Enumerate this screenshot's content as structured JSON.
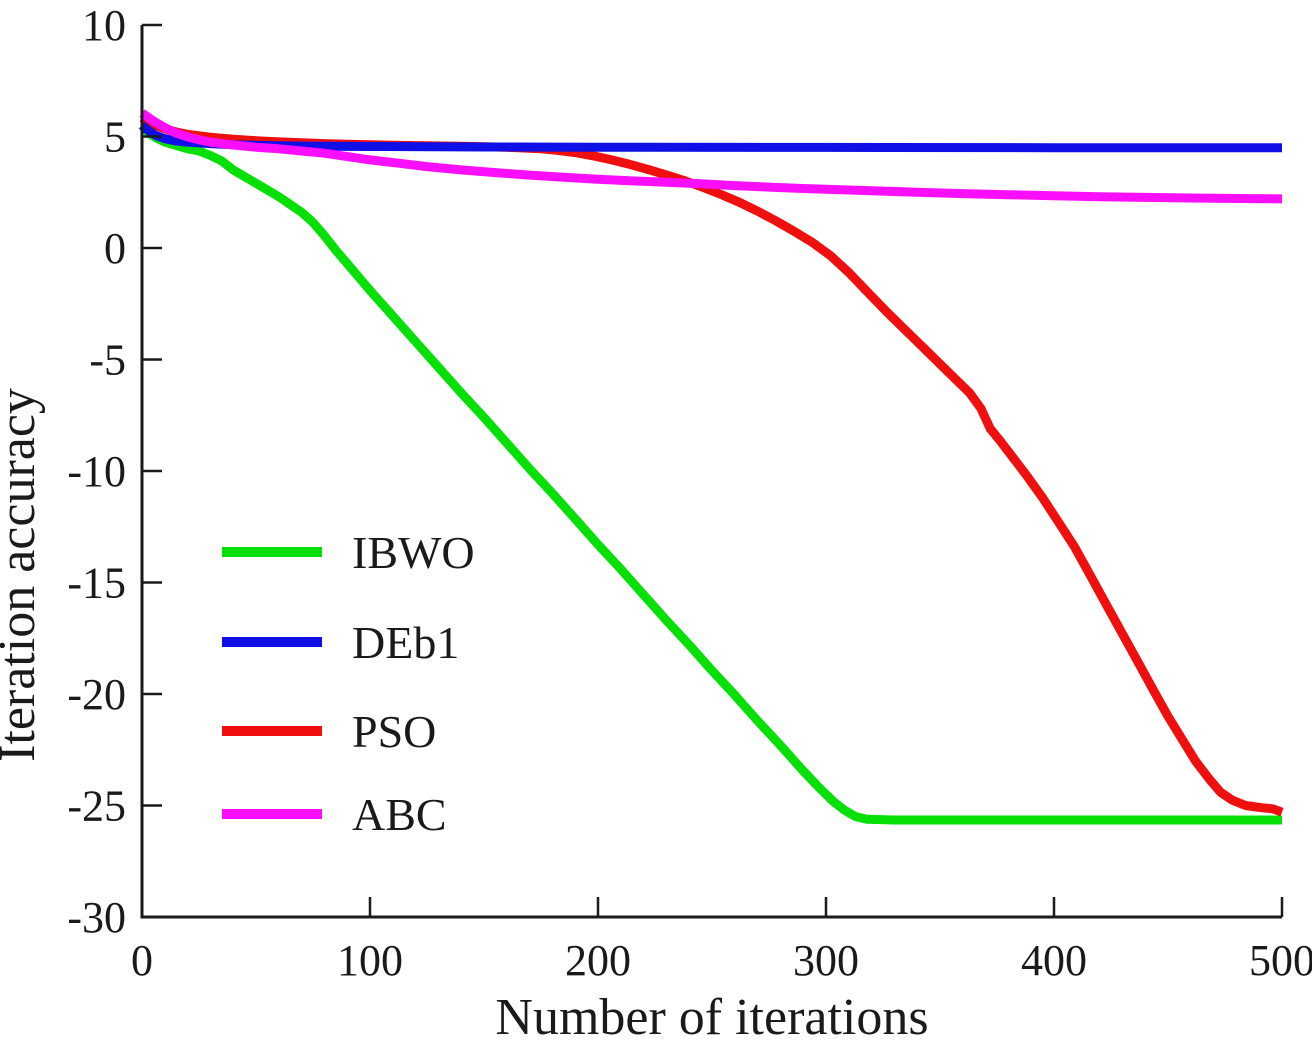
{
  "figure": {
    "background": "#ffffff",
    "axis_color": "#1a1a1a"
  },
  "chart_data": {
    "type": "line",
    "title": "",
    "xlabel": "Number of iterations",
    "ylabel": "Iteration accuracy",
    "xlim": [
      0,
      500
    ],
    "ylim": [
      -30,
      10
    ],
    "grid": false,
    "legend_position": "inside-left-middle",
    "x_tick_values": [
      0,
      100,
      200,
      300,
      400,
      500
    ],
    "x_tick_labels": [
      "0",
      "100",
      "200",
      "300",
      "400",
      "500"
    ],
    "y_tick_values": [
      10,
      5,
      0,
      -5,
      -10,
      -15,
      -20,
      -25,
      -30
    ],
    "y_tick_labels": [
      "10",
      "5",
      "0",
      "-5",
      "-10",
      "-15",
      "-20",
      "-25",
      "-30"
    ],
    "series": [
      {
        "name": "IBWO",
        "color": "#07e007",
        "points": [
          [
            0,
            5.5
          ],
          [
            3,
            5.15
          ],
          [
            6,
            4.95
          ],
          [
            10,
            4.75
          ],
          [
            15,
            4.6
          ],
          [
            20,
            4.45
          ],
          [
            25,
            4.35
          ],
          [
            30,
            4.15
          ],
          [
            35,
            3.9
          ],
          [
            40,
            3.5
          ],
          [
            45,
            3.2
          ],
          [
            50,
            2.9
          ],
          [
            55,
            2.6
          ],
          [
            60,
            2.3
          ],
          [
            65,
            1.95
          ],
          [
            70,
            1.6
          ],
          [
            75,
            1.15
          ],
          [
            80,
            0.55
          ],
          [
            85,
            -0.1
          ],
          [
            90,
            -0.7
          ],
          [
            95,
            -1.3
          ],
          [
            100,
            -1.9
          ],
          [
            110,
            -3.05
          ],
          [
            120,
            -4.2
          ],
          [
            130,
            -5.35
          ],
          [
            140,
            -6.5
          ],
          [
            150,
            -7.6
          ],
          [
            160,
            -8.75
          ],
          [
            170,
            -9.9
          ],
          [
            180,
            -11.0
          ],
          [
            190,
            -12.15
          ],
          [
            200,
            -13.3
          ],
          [
            210,
            -14.4
          ],
          [
            220,
            -15.55
          ],
          [
            230,
            -16.7
          ],
          [
            240,
            -17.8
          ],
          [
            250,
            -18.95
          ],
          [
            260,
            -20.05
          ],
          [
            270,
            -21.2
          ],
          [
            280,
            -22.3
          ],
          [
            290,
            -23.45
          ],
          [
            297,
            -24.2
          ],
          [
            303,
            -24.8
          ],
          [
            308,
            -25.2
          ],
          [
            313,
            -25.5
          ],
          [
            318,
            -25.62
          ],
          [
            330,
            -25.65
          ],
          [
            400,
            -25.65
          ],
          [
            500,
            -25.65
          ]
        ]
      },
      {
        "name": "DEb1",
        "color": "#0f0fe8",
        "points": [
          [
            0,
            5.5
          ],
          [
            3,
            5.25
          ],
          [
            6,
            5.05
          ],
          [
            10,
            4.9
          ],
          [
            15,
            4.8
          ],
          [
            20,
            4.75
          ],
          [
            30,
            4.68
          ],
          [
            40,
            4.63
          ],
          [
            50,
            4.6
          ],
          [
            70,
            4.57
          ],
          [
            100,
            4.55
          ],
          [
            150,
            4.53
          ],
          [
            200,
            4.52
          ],
          [
            300,
            4.51
          ],
          [
            400,
            4.5
          ],
          [
            500,
            4.5
          ]
        ]
      },
      {
        "name": "PSO",
        "color": "#ef0f0f",
        "points": [
          [
            0,
            5.85
          ],
          [
            4,
            5.6
          ],
          [
            8,
            5.42
          ],
          [
            12,
            5.28
          ],
          [
            16,
            5.18
          ],
          [
            20,
            5.1
          ],
          [
            25,
            5.03
          ],
          [
            30,
            4.97
          ],
          [
            40,
            4.88
          ],
          [
            50,
            4.81
          ],
          [
            60,
            4.76
          ],
          [
            70,
            4.72
          ],
          [
            80,
            4.68
          ],
          [
            90,
            4.65
          ],
          [
            100,
            4.63
          ],
          [
            120,
            4.59
          ],
          [
            140,
            4.56
          ],
          [
            155,
            4.53
          ],
          [
            165,
            4.5
          ],
          [
            175,
            4.45
          ],
          [
            182,
            4.38
          ],
          [
            190,
            4.28
          ],
          [
            198,
            4.13
          ],
          [
            206,
            3.95
          ],
          [
            214,
            3.75
          ],
          [
            222,
            3.52
          ],
          [
            230,
            3.28
          ],
          [
            238,
            3.02
          ],
          [
            246,
            2.72
          ],
          [
            254,
            2.4
          ],
          [
            262,
            2.05
          ],
          [
            270,
            1.65
          ],
          [
            278,
            1.22
          ],
          [
            286,
            0.75
          ],
          [
            294,
            0.25
          ],
          [
            302,
            -0.35
          ],
          [
            310,
            -1.1
          ],
          [
            318,
            -1.95
          ],
          [
            326,
            -2.8
          ],
          [
            334,
            -3.6
          ],
          [
            342,
            -4.4
          ],
          [
            350,
            -5.2
          ],
          [
            357,
            -5.9
          ],
          [
            363,
            -6.5
          ],
          [
            368,
            -7.2
          ],
          [
            372,
            -8.1
          ],
          [
            376,
            -8.6
          ],
          [
            382,
            -9.4
          ],
          [
            388,
            -10.2
          ],
          [
            395,
            -11.2
          ],
          [
            402,
            -12.3
          ],
          [
            409,
            -13.4
          ],
          [
            416,
            -14.7
          ],
          [
            423,
            -16.0
          ],
          [
            430,
            -17.3
          ],
          [
            437,
            -18.6
          ],
          [
            444,
            -19.9
          ],
          [
            450,
            -21.0
          ],
          [
            456,
            -22.0
          ],
          [
            462,
            -23.0
          ],
          [
            468,
            -23.8
          ],
          [
            473,
            -24.4
          ],
          [
            478,
            -24.75
          ],
          [
            484,
            -25.0
          ],
          [
            491,
            -25.1
          ],
          [
            496,
            -25.15
          ],
          [
            500,
            -25.3
          ]
        ]
      },
      {
        "name": "ABC",
        "color": "#fb0ffb",
        "points": [
          [
            0,
            6.05
          ],
          [
            5,
            5.7
          ],
          [
            10,
            5.4
          ],
          [
            15,
            5.15
          ],
          [
            20,
            4.98
          ],
          [
            25,
            4.85
          ],
          [
            30,
            4.75
          ],
          [
            40,
            4.62
          ],
          [
            50,
            4.52
          ],
          [
            60,
            4.45
          ],
          [
            70,
            4.35
          ],
          [
            80,
            4.25
          ],
          [
            90,
            4.1
          ],
          [
            100,
            3.95
          ],
          [
            113,
            3.8
          ],
          [
            125,
            3.65
          ],
          [
            140,
            3.5
          ],
          [
            155,
            3.38
          ],
          [
            170,
            3.27
          ],
          [
            185,
            3.17
          ],
          [
            200,
            3.08
          ],
          [
            215,
            3.01
          ],
          [
            230,
            2.95
          ],
          [
            245,
            2.88
          ],
          [
            260,
            2.8
          ],
          [
            275,
            2.73
          ],
          [
            290,
            2.67
          ],
          [
            305,
            2.62
          ],
          [
            320,
            2.57
          ],
          [
            340,
            2.5
          ],
          [
            360,
            2.44
          ],
          [
            380,
            2.39
          ],
          [
            400,
            2.34
          ],
          [
            420,
            2.3
          ],
          [
            440,
            2.27
          ],
          [
            460,
            2.24
          ],
          [
            480,
            2.22
          ],
          [
            500,
            2.2
          ]
        ]
      }
    ],
    "legend": [
      {
        "label": "IBWO",
        "color": "#07e007"
      },
      {
        "label": "DEb1",
        "color": "#0f0fe8"
      },
      {
        "label": "PSO",
        "color": "#ef0f0f"
      },
      {
        "label": "ABC",
        "color": "#fb0ffb"
      }
    ]
  }
}
